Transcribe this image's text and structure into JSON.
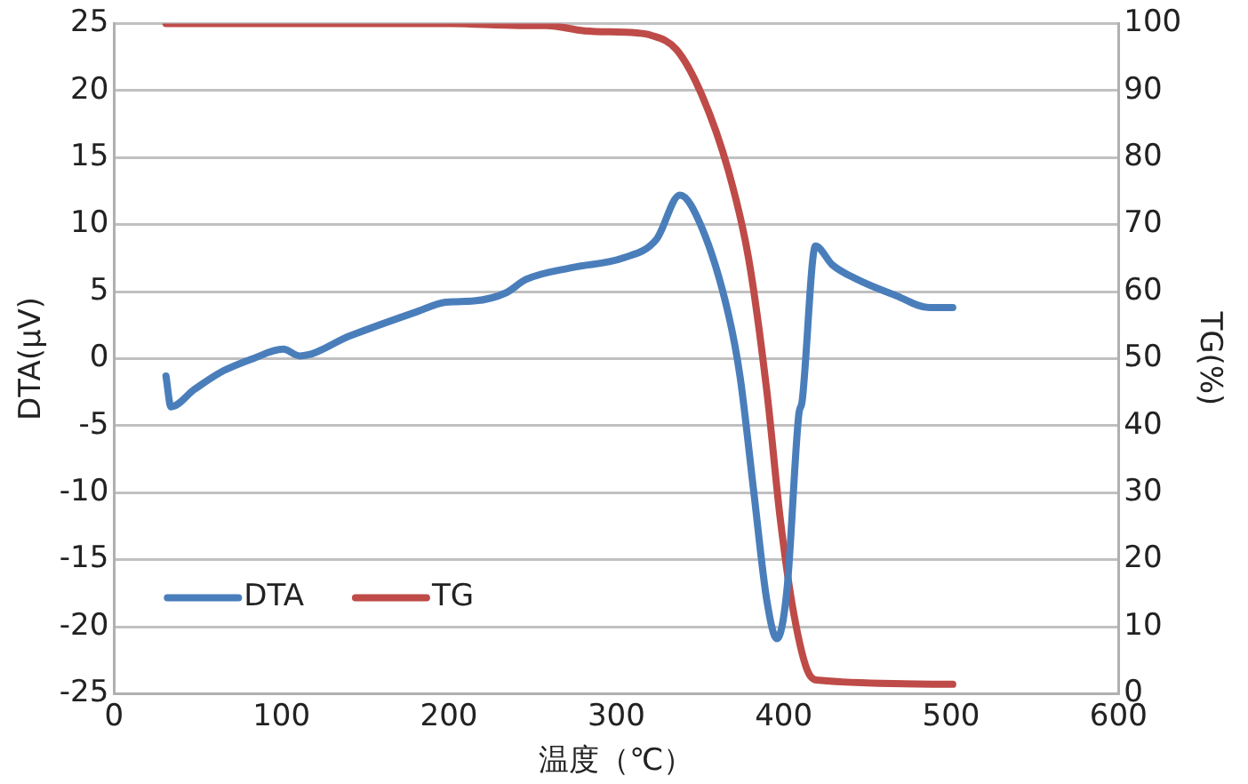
{
  "chart_data": {
    "type": "line",
    "xlabel": "温度（℃）",
    "ylabel": "DTA(μV)",
    "y2label": "TG(%)",
    "xlim": [
      0,
      600
    ],
    "xticks": [
      0,
      100,
      200,
      300,
      400,
      500,
      600
    ],
    "ylim": [
      -25,
      25
    ],
    "yticks": [
      -25,
      -20,
      -15,
      -10,
      -5,
      0,
      5,
      10,
      15,
      20,
      25
    ],
    "y2lim": [
      0,
      100
    ],
    "y2ticks": [
      0,
      10,
      20,
      30,
      40,
      50,
      60,
      70,
      80,
      90,
      100
    ],
    "grid": "y",
    "legend": "bottom left",
    "marker": "none",
    "line_style": "solid",
    "series": [
      {
        "name": "DTA",
        "color": "#4a7ebb",
        "x": [
          31,
          34,
          48,
          64,
          83,
          101,
          111,
          141,
          181,
          198,
          215,
          234,
          246,
          274,
          304,
          324,
          338,
          351,
          367,
          374,
          382,
          390,
          396,
          402,
          409,
          411,
          419,
          429,
          444,
          467,
          487,
          501
        ],
        "values": [
          -1.3,
          -3.6,
          -2.3,
          -1.0,
          0,
          0.7,
          0.2,
          1.7,
          3.5,
          4.2,
          4.3,
          4.9,
          5.9,
          6.8,
          7.5,
          8.9,
          12.2,
          9.8,
          3.3,
          -1.4,
          -9.8,
          -18.1,
          -20.9,
          -17.2,
          -4.2,
          -3.2,
          8.4,
          7.0,
          5.9,
          4.7,
          3.8,
          3.8
        ]
      },
      {
        "name": "TG",
        "color": "#be4b48",
        "axis": "y2",
        "x": [
          31,
          100,
          200,
          242,
          258,
          281,
          312,
          320,
          336,
          351,
          367,
          379,
          390,
          398,
          406,
          415,
          421,
          501
        ],
        "values": [
          100,
          100,
          100,
          99.7,
          99.7,
          98.9,
          98.6,
          98.3,
          96.1,
          89.4,
          78,
          65,
          45,
          26,
          12,
          3,
          2,
          1.4
        ]
      }
    ]
  }
}
